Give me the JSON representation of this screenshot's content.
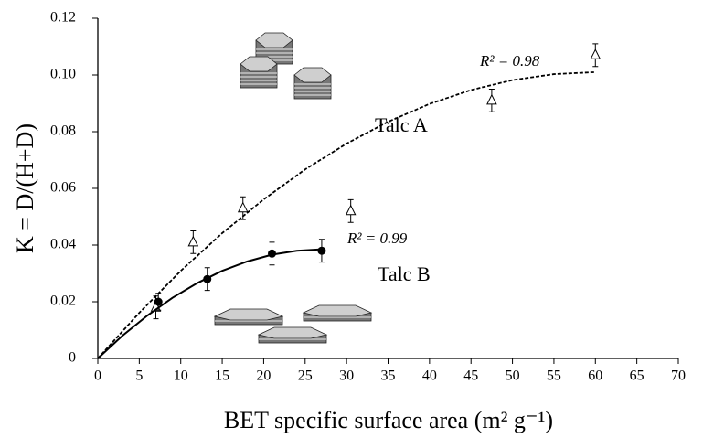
{
  "chart_data": {
    "type": "scatter",
    "xlabel": "BET specific surface area (m² g⁻¹)",
    "ylabel": "K = D/(H+D)",
    "xlim": [
      0,
      70
    ],
    "ylim": [
      0,
      0.12
    ],
    "xticks": [
      0,
      5,
      10,
      15,
      20,
      25,
      30,
      35,
      40,
      45,
      50,
      55,
      60,
      65,
      70
    ],
    "yticks": [
      0,
      0.02,
      0.04,
      0.06,
      0.08,
      {
        "value": 0.1,
        "label": "0.10"
      },
      0.12
    ],
    "series": [
      {
        "name": "Talc A",
        "marker": "triangle",
        "color": "#000000",
        "x": [
          7,
          11.5,
          17.5,
          30.5,
          47.5,
          60
        ],
        "values": [
          0.018,
          0.041,
          0.053,
          0.052,
          0.091,
          0.107
        ],
        "errors": [
          0.004,
          0.004,
          0.004,
          0.004,
          0.004,
          0.004
        ],
        "fit": {
          "dashed": true,
          "label": "R² = 0.98",
          "x": [
            0,
            5,
            10,
            15,
            20,
            25,
            30,
            35,
            40,
            45,
            50,
            55,
            60
          ],
          "values": [
            0,
            0.0161,
            0.0309,
            0.0442,
            0.0561,
            0.0667,
            0.0758,
            0.0835,
            0.0898,
            0.0947,
            0.0982,
            0.1003,
            0.101
          ]
        }
      },
      {
        "name": "Talc B",
        "marker": "circle",
        "color": "#000000",
        "x": [
          7.3,
          13.2,
          21,
          27
        ],
        "values": [
          0.02,
          0.028,
          0.037,
          0.038
        ],
        "errors": [
          0.003,
          0.004,
          0.004,
          0.004
        ],
        "fit": {
          "dashed": false,
          "label": "R² = 0.99",
          "x": [
            0,
            3,
            6,
            9,
            12,
            15,
            18,
            21,
            24,
            27
          ],
          "values": [
            0,
            0.0081,
            0.0152,
            0.0214,
            0.0266,
            0.0309,
            0.0342,
            0.0366,
            0.038,
            0.0385
          ]
        }
      }
    ]
  }
}
